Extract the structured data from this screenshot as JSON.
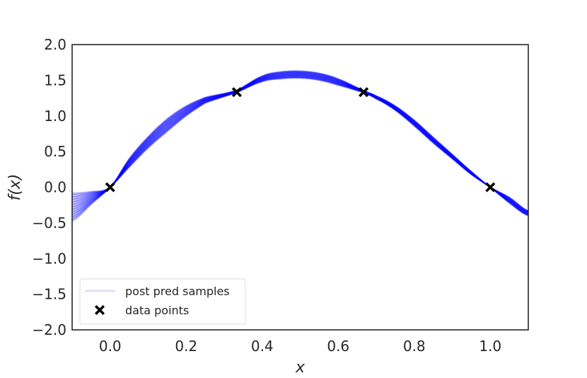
{
  "chart_data": {
    "type": "line",
    "xlabel": "x",
    "ylabel": "f(x)",
    "xlim": [
      -0.1,
      1.1
    ],
    "ylim": [
      -2.0,
      2.0
    ],
    "xticks": [
      0.0,
      0.2,
      0.4,
      0.6,
      0.8,
      1.0
    ],
    "xtick_labels": [
      "0.0",
      "0.2",
      "0.4",
      "0.6",
      "0.8",
      "1.0"
    ],
    "yticks": [
      2.0,
      1.5,
      1.0,
      0.5,
      0.0,
      -0.5,
      -1.0,
      -1.5,
      -2.0
    ],
    "ytick_labels": [
      "2.0",
      "1.5",
      "1.0",
      "0.5",
      "0.0",
      "−0.5",
      "−1.0",
      "−1.5",
      "−2.0"
    ],
    "grid": false,
    "legend_position": "bottom-left",
    "series": [
      {
        "name": "post pred samples",
        "kind": "band",
        "color": "#0000ff",
        "x": [
          -0.1,
          -0.05,
          0.0,
          0.05,
          0.1,
          0.15,
          0.2,
          0.25,
          0.3333,
          0.4,
          0.45,
          0.5,
          0.55,
          0.6,
          0.6667,
          0.7,
          0.75,
          0.8,
          0.85,
          0.9,
          0.95,
          1.0,
          1.05,
          1.1
        ],
        "lower": [
          -0.48,
          -0.24,
          0.0,
          0.28,
          0.55,
          0.78,
          1.0,
          1.18,
          1.33,
          1.48,
          1.52,
          1.53,
          1.5,
          1.43,
          1.33,
          1.24,
          1.08,
          0.86,
          0.62,
          0.4,
          0.18,
          0.0,
          -0.22,
          -0.4
        ],
        "upper": [
          -0.08,
          -0.06,
          0.0,
          0.4,
          0.71,
          0.96,
          1.14,
          1.26,
          1.36,
          1.56,
          1.62,
          1.63,
          1.6,
          1.52,
          1.36,
          1.28,
          1.14,
          0.94,
          0.7,
          0.46,
          0.22,
          0.0,
          -0.14,
          -0.33
        ]
      },
      {
        "name": "data points",
        "kind": "scatter",
        "marker": "X",
        "color": "#000000",
        "x": [
          0.0,
          0.3333,
          0.6667,
          1.0
        ],
        "y": [
          0.0,
          1.333,
          1.333,
          0.0
        ]
      }
    ]
  }
}
